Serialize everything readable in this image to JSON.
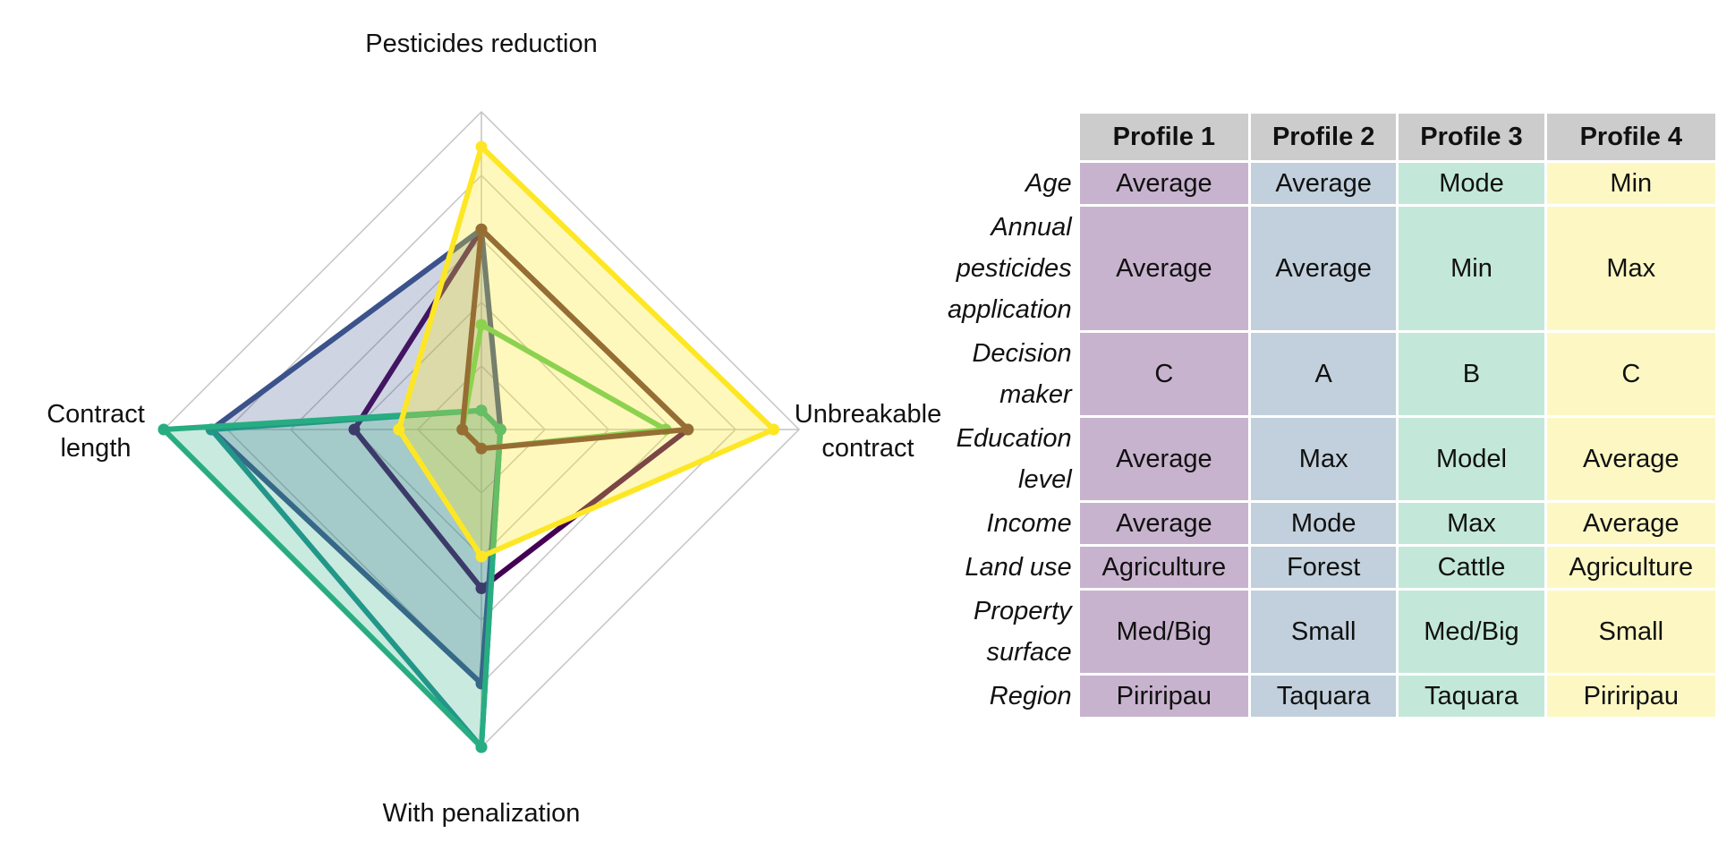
{
  "chart_data": [
    {
      "type": "radar",
      "axes": [
        "Pesticides reduction",
        "Unbreakable contract",
        "With penalization",
        "Contract length"
      ],
      "axis_label_lines": [
        [
          "Pesticides reduction"
        ],
        [
          "Unbreakable",
          "contract"
        ],
        [
          "With penalization"
        ],
        [
          "Contract",
          "length"
        ]
      ],
      "range": [
        0,
        1
      ],
      "grid_levels": [
        0.2,
        0.4,
        0.6,
        0.8,
        1.0
      ],
      "series": [
        {
          "color": "#440154",
          "fill_opacity": 0.0,
          "values": [
            0.63,
            0.65,
            0.5,
            0.4
          ]
        },
        {
          "color": "#3b528b",
          "fill_opacity": 0.25,
          "values": [
            0.63,
            0.06,
            0.8,
            0.85
          ]
        },
        {
          "color": "#21908c",
          "fill_opacity": 0.0,
          "values": [
            0.06,
            0.06,
            1.0,
            0.85
          ]
        },
        {
          "color": "#27ad81",
          "fill_opacity": 0.25,
          "values": [
            0.06,
            0.06,
            1.0,
            1.0
          ]
        },
        {
          "color": "#5ec962",
          "fill_opacity": 0.0,
          "values": [
            0.33,
            0.58,
            0.06,
            0.06
          ]
        },
        {
          "color": "#6b3a3a",
          "fill_opacity": 0.0,
          "values": [
            0.63,
            0.65,
            0.06,
            0.06
          ]
        },
        {
          "color": "#fde725",
          "fill_opacity": 0.3,
          "values": [
            0.89,
            0.92,
            0.4,
            0.26
          ]
        }
      ]
    },
    {
      "type": "table",
      "columns": [
        "Profile 1",
        "Profile 2",
        "Profile 3",
        "Profile 4"
      ],
      "column_colors": [
        "#c8b3ce",
        "#c1d0dc",
        "#c3e8d9",
        "#fdf8c3"
      ],
      "rows": [
        {
          "label": [
            "Age"
          ],
          "values": [
            "Average",
            "Average",
            "Mode",
            "Min"
          ]
        },
        {
          "label": [
            "Annual",
            "pesticides",
            "application"
          ],
          "values": [
            "Average",
            "Average",
            "Min",
            "Max"
          ]
        },
        {
          "label": [
            "Decision",
            "maker"
          ],
          "values": [
            "C",
            "A",
            "B",
            "C"
          ]
        },
        {
          "label": [
            "Education",
            "level"
          ],
          "values": [
            "Average",
            "Max",
            "Model",
            "Average"
          ]
        },
        {
          "label": [
            "Income"
          ],
          "values": [
            "Average",
            "Mode",
            "Max",
            "Average"
          ]
        },
        {
          "label": [
            "Land use"
          ],
          "values": [
            "Agriculture",
            "Forest",
            "Cattle",
            "Agriculture"
          ]
        },
        {
          "label": [
            "Property",
            "surface"
          ],
          "values": [
            "Med/Big",
            "Small",
            "Med/Big",
            "Small"
          ]
        },
        {
          "label": [
            "Region"
          ],
          "values": [
            "Piriripau",
            "Taquara",
            "Taquara",
            "Piriripau"
          ]
        }
      ]
    }
  ]
}
